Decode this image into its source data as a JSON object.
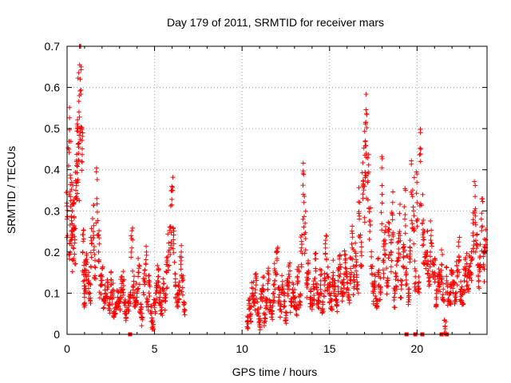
{
  "chart_data": {
    "type": "scatter",
    "title": "Day 179 of 2011, SRMTID for receiver mars",
    "xlabel": "GPS time / hours",
    "ylabel": "SRMTID / TECUs",
    "xlim": [
      0,
      24
    ],
    "ylim": [
      0,
      0.7
    ],
    "xticks": [
      "0",
      "5",
      "10",
      "15",
      "20"
    ],
    "xtick_values": [
      0,
      5,
      10,
      15,
      20
    ],
    "yticks": [
      "0",
      "0.1",
      "0.2",
      "0.3",
      "0.4",
      "0.5",
      "0.6",
      "0.7"
    ],
    "ytick_values": [
      0,
      0.1,
      0.2,
      0.3,
      0.4,
      0.5,
      0.6,
      0.7
    ],
    "grid": true,
    "marker": "+",
    "color": "#ff0000",
    "series": [
      {
        "name": "SRMTID",
        "x": [
          0.0,
          0.1,
          0.15,
          0.2,
          0.25,
          0.3,
          0.35,
          0.4,
          0.45,
          0.5,
          0.55,
          0.6,
          0.65,
          0.7,
          0.75,
          0.8,
          0.85,
          0.9,
          0.95,
          1.0,
          1.05,
          1.1,
          1.2,
          1.3,
          1.4,
          1.5,
          1.6,
          1.7,
          1.8,
          1.9,
          2.0,
          2.1,
          2.2,
          2.3,
          2.4,
          2.5,
          2.6,
          2.7,
          2.8,
          2.9,
          3.0,
          3.1,
          3.2,
          3.3,
          3.4,
          3.5,
          3.6,
          3.7,
          3.8,
          3.9,
          4.0,
          4.1,
          4.2,
          4.3,
          4.4,
          4.5,
          4.6,
          4.7,
          4.8,
          4.9,
          5.0,
          5.1,
          5.2,
          5.3,
          5.4,
          5.5,
          5.6,
          5.7,
          5.8,
          5.9,
          6.0,
          6.1,
          6.2,
          6.3,
          6.4,
          6.5,
          6.6,
          6.7,
          10.3,
          10.4,
          10.5,
          10.6,
          10.7,
          10.8,
          10.9,
          11.0,
          11.1,
          11.2,
          11.3,
          11.4,
          11.5,
          11.6,
          11.7,
          11.8,
          11.9,
          12.0,
          12.1,
          12.2,
          12.3,
          12.4,
          12.5,
          12.6,
          12.7,
          12.8,
          12.9,
          13.0,
          13.1,
          13.2,
          13.3,
          13.4,
          13.5,
          13.6,
          13.7,
          13.8,
          13.9,
          14.0,
          14.1,
          14.2,
          14.3,
          14.4,
          14.5,
          14.6,
          14.7,
          14.8,
          14.9,
          15.0,
          15.1,
          15.2,
          15.3,
          15.4,
          15.5,
          15.6,
          15.7,
          15.8,
          15.9,
          16.0,
          16.1,
          16.2,
          16.3,
          16.4,
          16.5,
          16.6,
          16.7,
          16.8,
          16.9,
          17.0,
          17.05,
          17.1,
          17.2,
          17.3,
          17.4,
          17.5,
          17.6,
          17.7,
          17.8,
          17.9,
          18.0,
          18.1,
          18.2,
          18.3,
          18.4,
          18.5,
          18.6,
          18.7,
          18.8,
          18.9,
          19.0,
          19.1,
          19.2,
          19.3,
          19.4,
          19.5,
          19.6,
          19.7,
          19.8,
          19.9,
          20.0,
          20.1,
          20.2,
          20.3,
          20.4,
          20.5,
          20.6,
          20.7,
          20.8,
          20.9,
          21.0,
          21.1,
          21.2,
          21.3,
          21.4,
          21.5,
          21.6,
          21.7,
          21.8,
          21.9,
          22.0,
          22.1,
          22.2,
          22.3,
          22.4,
          22.5,
          22.6,
          22.7,
          22.8,
          22.9,
          23.0,
          23.1,
          23.2,
          23.3,
          23.4,
          23.5,
          23.6,
          23.7,
          23.8,
          23.9
        ],
        "y": [
          0.28,
          0.45,
          0.22,
          0.38,
          0.25,
          0.3,
          0.21,
          0.26,
          0.23,
          0.35,
          0.41,
          0.5,
          0.44,
          0.58,
          0.62,
          0.65,
          0.42,
          0.2,
          0.15,
          0.09,
          0.14,
          0.17,
          0.13,
          0.1,
          0.22,
          0.25,
          0.18,
          0.33,
          0.2,
          0.12,
          0.14,
          0.08,
          0.1,
          0.11,
          0.07,
          0.12,
          0.1,
          0.05,
          0.06,
          0.09,
          0.08,
          0.11,
          0.13,
          0.07,
          0.05,
          0.06,
          0.09,
          0.21,
          0.12,
          0.08,
          0.1,
          0.15,
          0.06,
          0.04,
          0.13,
          0.17,
          0.08,
          0.12,
          0.05,
          0.03,
          0.07,
          0.1,
          0.14,
          0.09,
          0.06,
          0.11,
          0.08,
          0.15,
          0.2,
          0.26,
          0.35,
          0.22,
          0.12,
          0.08,
          0.1,
          0.17,
          0.13,
          0.06,
          0.03,
          0.07,
          0.05,
          0.1,
          0.08,
          0.12,
          0.06,
          0.02,
          0.09,
          0.11,
          0.04,
          0.08,
          0.13,
          0.07,
          0.05,
          0.1,
          0.15,
          0.18,
          0.09,
          0.06,
          0.12,
          0.08,
          0.04,
          0.11,
          0.14,
          0.07,
          0.1,
          0.09,
          0.06,
          0.13,
          0.08,
          0.21,
          0.34,
          0.27,
          0.12,
          0.15,
          0.09,
          0.07,
          0.11,
          0.16,
          0.1,
          0.08,
          0.13,
          0.06,
          0.12,
          0.24,
          0.14,
          0.1,
          0.08,
          0.15,
          0.11,
          0.07,
          0.13,
          0.17,
          0.1,
          0.12,
          0.18,
          0.14,
          0.09,
          0.16,
          0.21,
          0.13,
          0.19,
          0.12,
          0.28,
          0.2,
          0.33,
          0.36,
          0.47,
          0.43,
          0.39,
          0.25,
          0.16,
          0.1,
          0.12,
          0.08,
          0.15,
          0.11,
          0.34,
          0.18,
          0.22,
          0.13,
          0.24,
          0.2,
          0.29,
          0.09,
          0.14,
          0.18,
          0.25,
          0.12,
          0.21,
          0.28,
          0.16,
          0.1,
          0.19,
          0.34,
          0.3,
          0.14,
          0.32,
          0.11,
          0.42,
          0.27,
          0.23,
          0.16,
          0.2,
          0.13,
          0.24,
          0.18,
          0.15,
          0.09,
          0.14,
          0.12,
          0.17,
          0.11,
          0.02,
          0.13,
          0.08,
          0.1,
          0.15,
          0.12,
          0.09,
          0.14,
          0.19,
          0.11,
          0.1,
          0.13,
          0.16,
          0.12,
          0.15,
          0.18,
          0.24,
          0.3,
          0.22,
          0.14,
          0.19,
          0.26,
          0.17,
          0.21
        ]
      }
    ],
    "baseline_markers_x": [
      3.6,
      19.4,
      19.9,
      20.3,
      21.4,
      21.7
    ]
  }
}
